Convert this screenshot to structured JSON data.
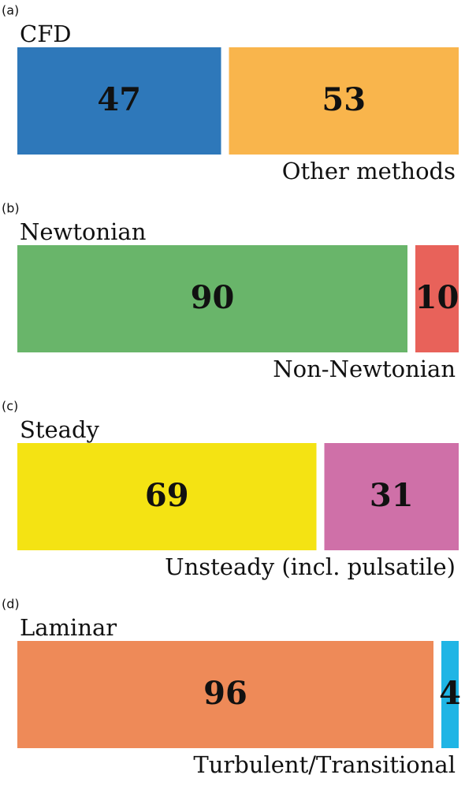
{
  "chart_data": [
    {
      "type": "stacked-bar",
      "panel": "(a)",
      "series": [
        {
          "name": "CFD",
          "color": "#2e78ba",
          "values": [
            47
          ]
        },
        {
          "name": "Other methods",
          "color": "#f9b54c",
          "values": [
            53
          ]
        }
      ]
    },
    {
      "type": "stacked-bar",
      "panel": "(b)",
      "series": [
        {
          "name": "Newtonian",
          "color": "#69b56a",
          "values": [
            90
          ]
        },
        {
          "name": "Non-Newtonian",
          "color": "#e8625a",
          "values": [
            10
          ]
        }
      ]
    },
    {
      "type": "stacked-bar",
      "panel": "(c)",
      "series": [
        {
          "name": "Steady",
          "color": "#f4e313",
          "values": [
            69
          ]
        },
        {
          "name": "Unsteady (incl. pulsatile)",
          "color": "#cf70a8",
          "values": [
            31
          ]
        }
      ]
    },
    {
      "type": "stacked-bar",
      "panel": "(d)",
      "series": [
        {
          "name": "Laminar",
          "color": "#ee8a58",
          "values": [
            96
          ]
        },
        {
          "name": "Turbulent/Transitional",
          "color": "#1fb5e5",
          "values": [
            4
          ]
        }
      ]
    }
  ]
}
